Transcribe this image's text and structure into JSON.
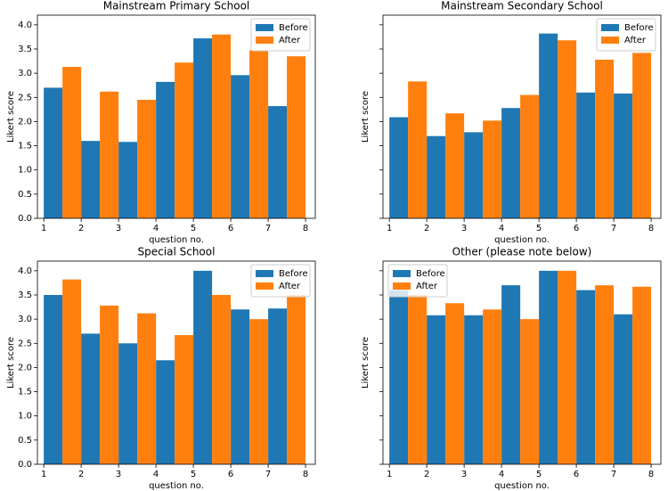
{
  "chart_data": [
    {
      "type": "histogram",
      "title": "Mainstream Primary School",
      "xlabel": "question no.",
      "ylabel": "Likert score",
      "bins": [
        1,
        2,
        3,
        4,
        5,
        6,
        7,
        8
      ],
      "series": [
        {
          "name": "Before",
          "color": "#1f77b4",
          "values": [
            2.7,
            1.6,
            1.58,
            2.82,
            3.72,
            2.96,
            2.32
          ]
        },
        {
          "name": "After",
          "color": "#ff7f0e",
          "values": [
            3.13,
            2.62,
            2.45,
            3.22,
            3.8,
            3.47,
            3.35
          ]
        }
      ],
      "xlim": [
        0.83,
        8.26
      ],
      "ylim": [
        0,
        4.2
      ],
      "xticks": [
        1,
        2,
        3,
        4,
        5,
        6,
        7,
        8
      ],
      "yticks": [
        {
          "value": 0,
          "label": "0.0"
        },
        {
          "value": 0.5,
          "label": "0.5"
        },
        {
          "value": 1,
          "label": "1.0"
        },
        {
          "value": 1.5,
          "label": "1.5"
        },
        {
          "value": 2,
          "label": "2.0"
        },
        {
          "value": 2.5,
          "label": "2.5"
        },
        {
          "value": 3,
          "label": "3.0"
        },
        {
          "value": 3.5,
          "label": "3.5"
        },
        {
          "value": 4,
          "label": "4.0"
        }
      ],
      "ytick_labels": true,
      "legend": "upper right"
    },
    {
      "type": "histogram",
      "title": "Mainstream Secondary School",
      "xlabel": "question no.",
      "ylabel": "Likert score",
      "bins": [
        1,
        2,
        3,
        4,
        5,
        6,
        7,
        8
      ],
      "series": [
        {
          "name": "Before",
          "color": "#1f77b4",
          "values": [
            2.09,
            1.7,
            1.78,
            2.28,
            3.82,
            2.6,
            2.58
          ]
        },
        {
          "name": "After",
          "color": "#ff7f0e",
          "values": [
            2.83,
            2.17,
            2.02,
            2.55,
            3.68,
            3.28,
            3.42
          ]
        }
      ],
      "xlim": [
        0.83,
        8.26
      ],
      "ylim": [
        0,
        4.2
      ],
      "xticks": [
        1,
        2,
        3,
        4,
        5,
        6,
        7,
        8
      ],
      "yticks": [
        0,
        0.5,
        1,
        1.5,
        2,
        2.5,
        3,
        3.5,
        4
      ],
      "ytick_labels": false,
      "legend": "upper right"
    },
    {
      "type": "histogram",
      "title": "Special School",
      "xlabel": "question no.",
      "ylabel": "Likert score",
      "bins": [
        1,
        2,
        3,
        4,
        5,
        6,
        7,
        8
      ],
      "series": [
        {
          "name": "Before",
          "color": "#1f77b4",
          "values": [
            3.5,
            2.7,
            2.5,
            2.15,
            4.0,
            3.2,
            3.22
          ]
        },
        {
          "name": "After",
          "color": "#ff7f0e",
          "values": [
            3.82,
            3.28,
            3.12,
            2.67,
            3.5,
            3.0,
            3.5
          ]
        }
      ],
      "xlim": [
        0.83,
        8.26
      ],
      "ylim": [
        0,
        4.2
      ],
      "xticks": [
        1,
        2,
        3,
        4,
        5,
        6,
        7,
        8
      ],
      "yticks": [
        {
          "value": 0,
          "label": "0.0"
        },
        {
          "value": 0.5,
          "label": "0.5"
        },
        {
          "value": 1,
          "label": "1.0"
        },
        {
          "value": 1.5,
          "label": "1.5"
        },
        {
          "value": 2,
          "label": "2.0"
        },
        {
          "value": 2.5,
          "label": "2.5"
        },
        {
          "value": 3,
          "label": "3.0"
        },
        {
          "value": 3.5,
          "label": "3.5"
        },
        {
          "value": 4,
          "label": "4.0"
        }
      ],
      "ytick_labels": true,
      "legend": "upper right"
    },
    {
      "type": "histogram",
      "title": "Other (please note below)",
      "xlabel": "question no.",
      "ylabel": "Likert score",
      "bins": [
        1,
        2,
        3,
        4,
        5,
        6,
        7,
        8
      ],
      "series": [
        {
          "name": "Before",
          "color": "#1f77b4",
          "values": [
            3.6,
            3.08,
            3.08,
            3.7,
            4.0,
            3.6,
            3.1
          ]
        },
        {
          "name": "After",
          "color": "#ff7f0e",
          "values": [
            3.5,
            3.33,
            3.2,
            3.0,
            4.0,
            3.7,
            3.67
          ]
        }
      ],
      "xlim": [
        0.83,
        8.26
      ],
      "ylim": [
        0,
        4.2
      ],
      "xticks": [
        1,
        2,
        3,
        4,
        5,
        6,
        7,
        8
      ],
      "yticks": [
        0,
        0.5,
        1,
        1.5,
        2,
        2.5,
        3,
        3.5,
        4
      ],
      "ytick_labels": false,
      "legend": "upper left"
    }
  ]
}
